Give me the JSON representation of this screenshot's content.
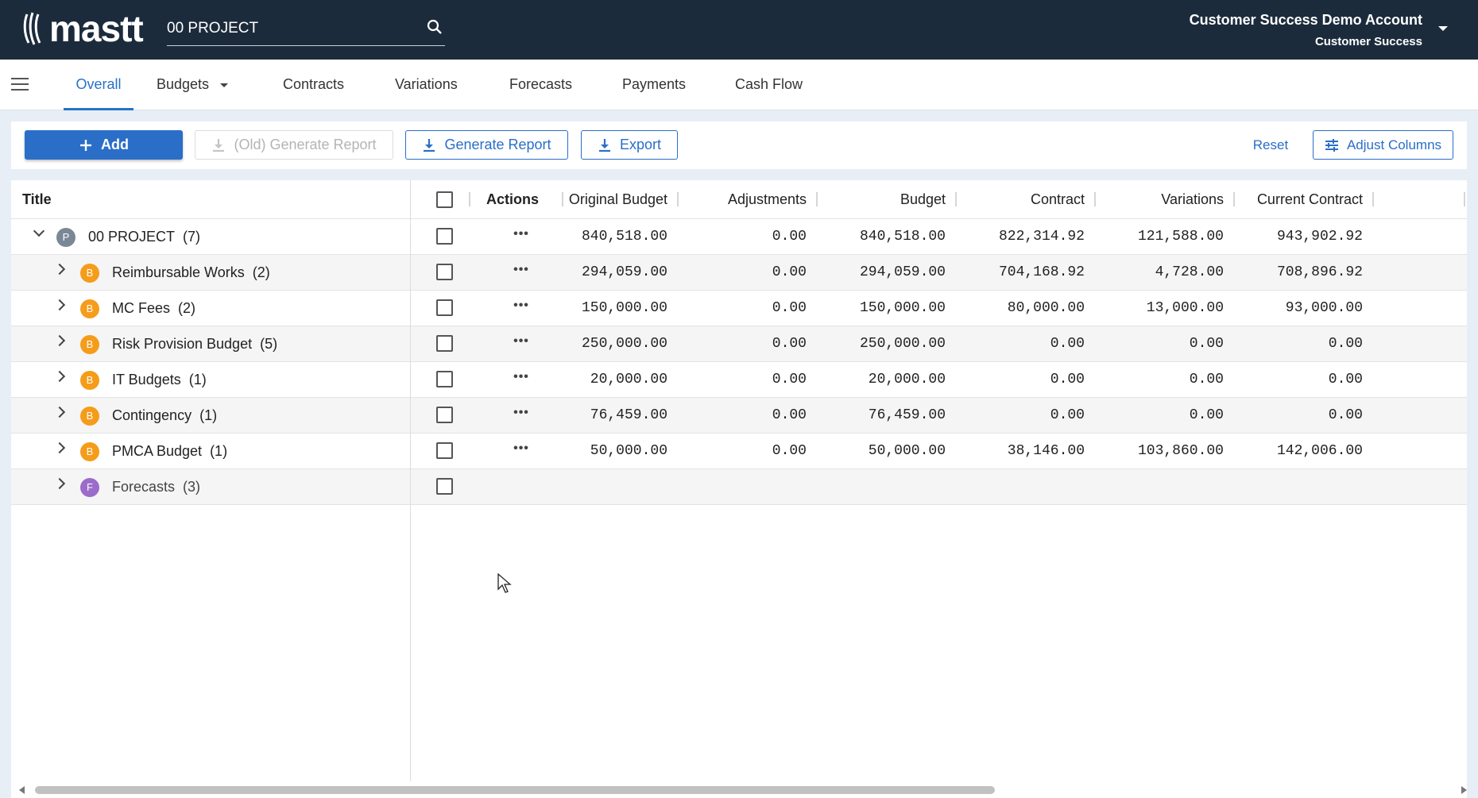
{
  "app": {
    "logo_text": "mastt",
    "search": {
      "value": "00 PROJECT",
      "placeholder": ""
    },
    "account": {
      "name": "Customer Success Demo Account",
      "role": "Customer Success"
    }
  },
  "nav": {
    "tabs": [
      {
        "label": "Overall",
        "active": true
      },
      {
        "label": "Budgets",
        "dropdown": true
      },
      {
        "label": "Contracts"
      },
      {
        "label": "Variations"
      },
      {
        "label": "Forecasts"
      },
      {
        "label": "Payments"
      },
      {
        "label": "Cash Flow"
      }
    ]
  },
  "toolbar": {
    "add_label": "Add",
    "old_report_label": "(Old) Generate Report",
    "generate_label": "Generate Report",
    "export_label": "Export",
    "reset_label": "Reset",
    "adjust_label": "Adjust Columns"
  },
  "grid": {
    "columns": {
      "title": "Title",
      "actions": "Actions",
      "original_budget": "Original Budget",
      "adjustments": "Adjustments",
      "budget": "Budget",
      "contract": "Contract",
      "variations": "Variations",
      "current_contract": "Current Contract"
    },
    "rows": [
      {
        "title": "00 PROJECT",
        "count": "(7)",
        "badge": "P",
        "expanded": true,
        "original_budget": "840,518.00",
        "adjustments": "0.00",
        "budget": "840,518.00",
        "contract": "822,314.92",
        "variations": "121,588.00",
        "current_contract": "943,902.92"
      },
      {
        "title": "Reimbursable Works",
        "count": "(2)",
        "badge": "B",
        "original_budget": "294,059.00",
        "adjustments": "0.00",
        "budget": "294,059.00",
        "contract": "704,168.92",
        "variations": "4,728.00",
        "current_contract": "708,896.92"
      },
      {
        "title": "MC Fees",
        "count": "(2)",
        "badge": "B",
        "original_budget": "150,000.00",
        "adjustments": "0.00",
        "budget": "150,000.00",
        "contract": "80,000.00",
        "variations": "13,000.00",
        "current_contract": "93,000.00"
      },
      {
        "title": "Risk Provision Budget",
        "count": "(5)",
        "badge": "B",
        "original_budget": "250,000.00",
        "adjustments": "0.00",
        "budget": "250,000.00",
        "contract": "0.00",
        "variations": "0.00",
        "current_contract": "0.00"
      },
      {
        "title": "IT Budgets",
        "count": "(1)",
        "badge": "B",
        "original_budget": "20,000.00",
        "adjustments": "0.00",
        "budget": "20,000.00",
        "contract": "0.00",
        "variations": "0.00",
        "current_contract": "0.00"
      },
      {
        "title": "Contingency",
        "count": "(1)",
        "badge": "B",
        "original_budget": "76,459.00",
        "adjustments": "0.00",
        "budget": "76,459.00",
        "contract": "0.00",
        "variations": "0.00",
        "current_contract": "0.00"
      },
      {
        "title": "PMCA Budget",
        "count": "(1)",
        "badge": "B",
        "original_budget": "50,000.00",
        "adjustments": "0.00",
        "budget": "50,000.00",
        "contract": "38,146.00",
        "variations": "103,860.00",
        "current_contract": "142,006.00"
      },
      {
        "title": "Forecasts",
        "count": "(3)",
        "badge": "F"
      }
    ]
  },
  "colors": {
    "header_bg": "#1c2b3c",
    "accent": "#2a6ec8",
    "badge_project": "#7a8794",
    "badge_budget": "#f59c1a",
    "badge_forecast": "#9b6cc9"
  },
  "icons": {
    "search": "search-icon",
    "menu": "hamburger-menu-icon",
    "add": "plus-icon",
    "download": "download-icon",
    "adjust": "sliders-icon"
  }
}
